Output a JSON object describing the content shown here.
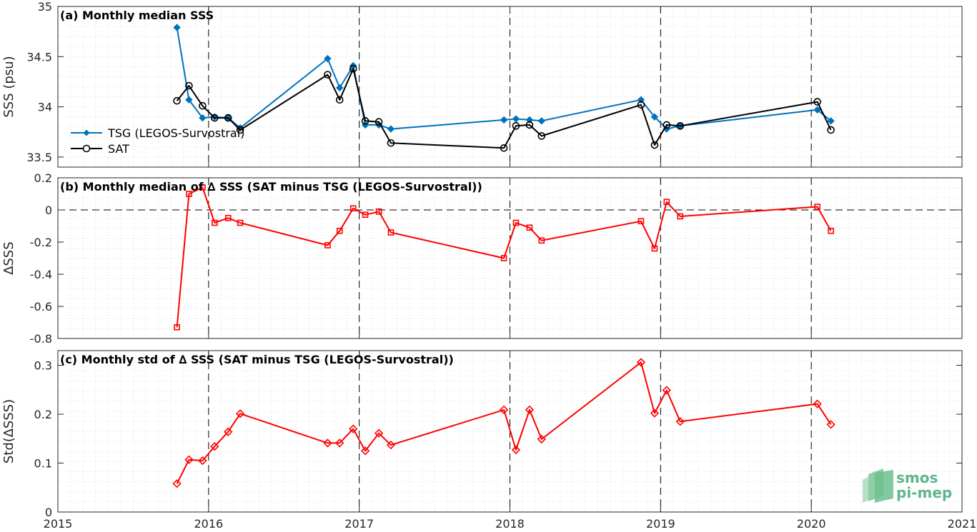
{
  "chart_data": [
    {
      "type": "line",
      "title": "(a) Monthly median SSS",
      "xlabel": "",
      "ylabel": "SSS (psu)",
      "xlim": [
        2015,
        2021
      ],
      "ylim": [
        33.4,
        35
      ],
      "yticks": [
        "33.5",
        "34",
        "34.5",
        "35"
      ],
      "xticks": [
        "2015",
        "2016",
        "2017",
        "2018",
        "2019",
        "2020",
        "2021"
      ],
      "grid": true,
      "legend_position": "middle-left",
      "series": [
        {
          "name": "TSG (LEGOS-Survostral)",
          "color": "#0072bd",
          "marker": "diamond-filled",
          "x": [
            2015.79,
            2015.87,
            2015.96,
            2016.04,
            2016.13,
            2016.21,
            2016.79,
            2016.87,
            2016.96,
            2017.04,
            2017.13,
            2017.21,
            2017.96,
            2018.04,
            2018.13,
            2018.21,
            2018.87,
            2018.96,
            2019.04,
            2019.13,
            2020.04,
            2020.13
          ],
          "y": [
            34.79,
            34.07,
            33.89,
            33.9,
            33.89,
            33.79,
            34.48,
            34.19,
            34.41,
            33.82,
            33.82,
            33.78,
            33.87,
            33.88,
            33.87,
            33.86,
            34.07,
            33.9,
            33.78,
            33.81,
            33.97,
            33.86
          ]
        },
        {
          "name": "SAT",
          "color": "#000000",
          "marker": "circle-open",
          "x": [
            2015.79,
            2015.87,
            2015.96,
            2016.04,
            2016.13,
            2016.21,
            2016.79,
            2016.87,
            2016.96,
            2017.04,
            2017.13,
            2017.21,
            2017.96,
            2018.04,
            2018.13,
            2018.21,
            2018.87,
            2018.96,
            2019.04,
            2019.13,
            2020.04,
            2020.13
          ],
          "y": [
            34.06,
            34.21,
            34.01,
            33.89,
            33.89,
            33.77,
            34.32,
            34.07,
            34.38,
            33.86,
            33.85,
            33.64,
            33.59,
            33.81,
            33.82,
            33.71,
            34.02,
            33.62,
            33.82,
            33.81,
            34.05,
            33.77
          ]
        }
      ]
    },
    {
      "type": "line",
      "title": "(b) Monthly median of ∆ SSS (SAT minus TSG (LEGOS-Survostral))",
      "xlabel": "",
      "ylabel": "∆SSS",
      "xlim": [
        2015,
        2021
      ],
      "ylim": [
        -0.8,
        0.2
      ],
      "yticks": [
        "-0.8",
        "-0.6",
        "-0.4",
        "-0.2",
        "0",
        "0.2"
      ],
      "zero_line": true,
      "grid": true,
      "series": [
        {
          "name": "",
          "color": "#ff0000",
          "marker": "square-open",
          "x": [
            2015.79,
            2015.87,
            2015.96,
            2016.04,
            2016.13,
            2016.21,
            2016.79,
            2016.87,
            2016.96,
            2017.04,
            2017.13,
            2017.21,
            2017.96,
            2018.04,
            2018.13,
            2018.21,
            2018.87,
            2018.96,
            2019.04,
            2019.13,
            2020.04,
            2020.13
          ],
          "y": [
            -0.73,
            0.1,
            0.14,
            -0.08,
            -0.05,
            -0.08,
            -0.22,
            -0.13,
            0.01,
            -0.03,
            -0.01,
            -0.14,
            -0.3,
            -0.08,
            -0.11,
            -0.19,
            -0.07,
            -0.24,
            0.05,
            -0.04,
            0.02,
            -0.13
          ]
        }
      ]
    },
    {
      "type": "line",
      "title": "(c) Monthly std of ∆ SSS (SAT minus TSG (LEGOS-Survostral))",
      "xlabel": "",
      "ylabel": "Std(∆SSS)",
      "xlim": [
        2015,
        2021
      ],
      "ylim": [
        0,
        0.33
      ],
      "yticks": [
        "0",
        "0.1",
        "0.2",
        "0.3"
      ],
      "grid": true,
      "series": [
        {
          "name": "",
          "color": "#ff0000",
          "marker": "diamond-open",
          "x": [
            2015.79,
            2015.87,
            2015.96,
            2016.04,
            2016.13,
            2016.21,
            2016.79,
            2016.87,
            2016.96,
            2017.04,
            2017.13,
            2017.21,
            2017.96,
            2018.04,
            2018.13,
            2018.21,
            2018.87,
            2018.96,
            2019.04,
            2019.13,
            2020.04,
            2020.13
          ],
          "y": [
            0.058,
            0.107,
            0.105,
            0.134,
            0.164,
            0.201,
            0.141,
            0.141,
            0.17,
            0.125,
            0.161,
            0.137,
            0.209,
            0.127,
            0.209,
            0.149,
            0.306,
            0.202,
            0.249,
            0.185,
            0.221,
            0.179
          ]
        }
      ]
    }
  ],
  "logo": {
    "line1": "smos",
    "line2": "pi-mep"
  }
}
